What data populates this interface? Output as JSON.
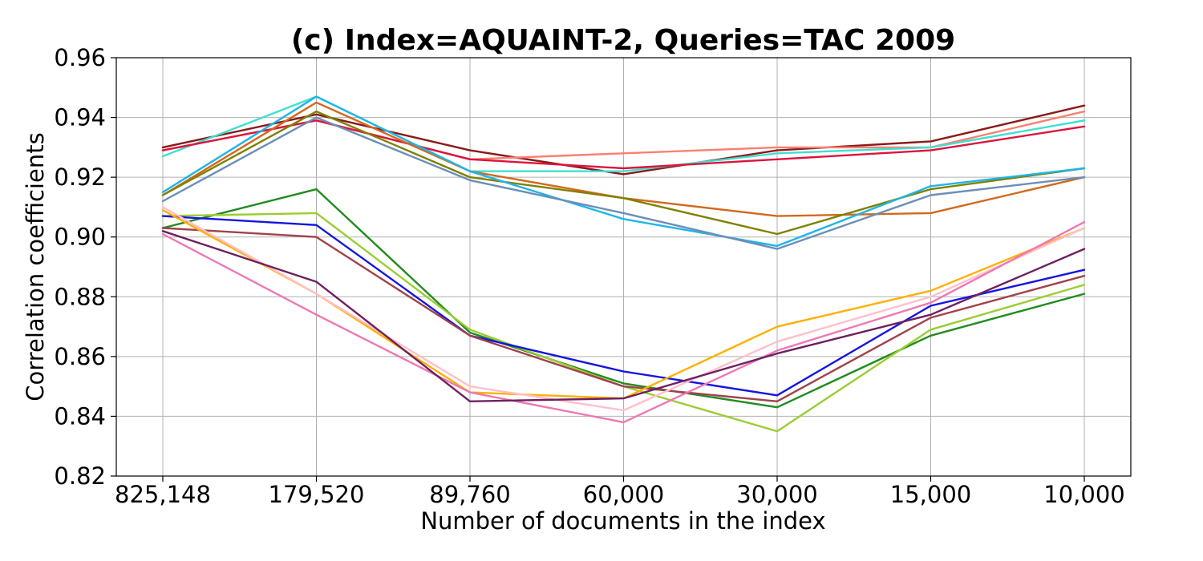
{
  "chart_data": {
    "type": "line",
    "title": "(c) Index=AQUAINT-2, Queries=TAC 2009",
    "xlabel": "Number of documents in the index",
    "ylabel": "Correlation coefficients",
    "categories": [
      "825,148",
      "179,520",
      "89,760",
      "60,000",
      "30,000",
      "15,000",
      "10,000"
    ],
    "ylim": [
      0.82,
      0.96
    ],
    "yticks": [
      "0.82",
      "0.84",
      "0.86",
      "0.88",
      "0.90",
      "0.92",
      "0.94",
      "0.96"
    ],
    "grid": true,
    "series": [
      {
        "color": "#8b1a1a",
        "values": [
          0.93,
          0.941,
          0.929,
          0.921,
          0.929,
          0.932,
          0.944
        ]
      },
      {
        "color": "#fa8072",
        "values": [
          0.929,
          0.939,
          0.926,
          0.928,
          0.93,
          0.93,
          0.942
        ]
      },
      {
        "color": "#40e0d0",
        "values": [
          0.927,
          0.947,
          0.922,
          0.922,
          0.928,
          0.93,
          0.939
        ]
      },
      {
        "color": "#dc143c",
        "values": [
          0.929,
          0.939,
          0.926,
          0.923,
          0.926,
          0.929,
          0.937
        ]
      },
      {
        "color": "#d2691e",
        "values": [
          0.914,
          0.945,
          0.922,
          0.913,
          0.907,
          0.908,
          0.92
        ]
      },
      {
        "color": "#808000",
        "values": [
          0.914,
          0.942,
          0.92,
          0.913,
          0.901,
          0.916,
          0.923
        ]
      },
      {
        "color": "#1fb5e8",
        "values": [
          0.915,
          0.947,
          0.922,
          0.906,
          0.897,
          0.917,
          0.923
        ]
      },
      {
        "color": "#6b8eb8",
        "values": [
          0.912,
          0.94,
          0.919,
          0.908,
          0.896,
          0.914,
          0.92
        ]
      },
      {
        "color": "#228b22",
        "values": [
          0.903,
          0.916,
          0.868,
          0.851,
          0.843,
          0.867,
          0.881
        ]
      },
      {
        "color": "#9acd32",
        "values": [
          0.907,
          0.908,
          0.869,
          0.85,
          0.835,
          0.869,
          0.884
        ]
      },
      {
        "color": "#1515e0",
        "values": [
          0.907,
          0.904,
          0.867,
          0.855,
          0.847,
          0.877,
          0.889
        ]
      },
      {
        "color": "#a0424a",
        "values": [
          0.903,
          0.9,
          0.867,
          0.85,
          0.845,
          0.873,
          0.887
        ]
      },
      {
        "color": "#ffb000",
        "values": [
          0.909,
          0.881,
          0.848,
          0.846,
          0.87,
          0.882,
          0.903
        ]
      },
      {
        "color": "#ffc0cb",
        "values": [
          0.91,
          0.881,
          0.85,
          0.842,
          0.865,
          0.88,
          0.903
        ]
      },
      {
        "color": "#ee78b4",
        "values": [
          0.901,
          0.874,
          0.848,
          0.838,
          0.862,
          0.878,
          0.905
        ]
      },
      {
        "color": "#6e2060",
        "values": [
          0.902,
          0.885,
          0.845,
          0.846,
          0.861,
          0.874,
          0.896
        ]
      }
    ]
  }
}
